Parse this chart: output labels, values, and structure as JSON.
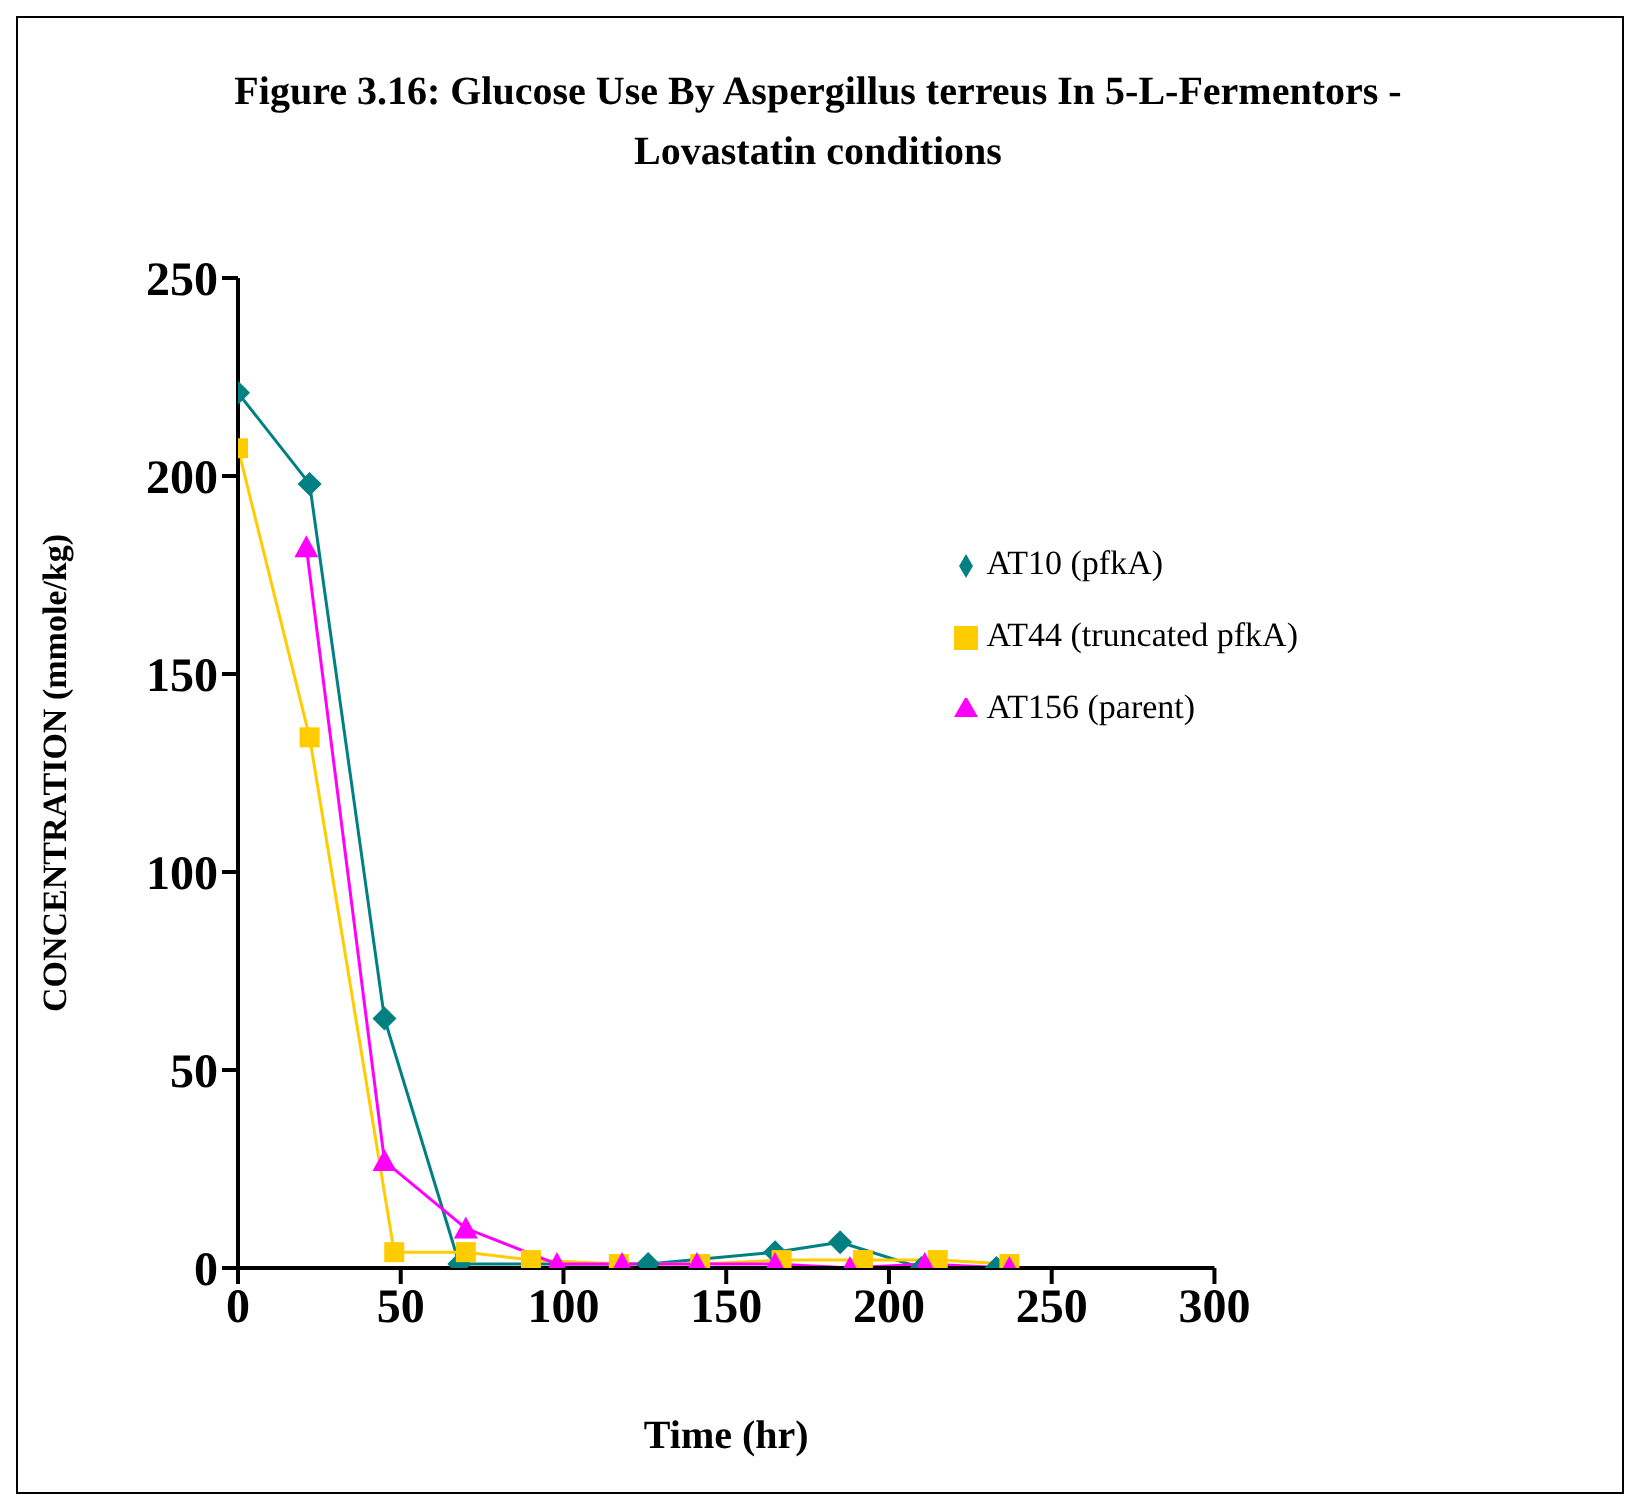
{
  "chart_data": {
    "type": "line",
    "title": "Figure 3.16: Glucose Use By Aspergillus terreus  In 5-L-Fermentors -Lovastatin conditions",
    "xlabel": "Time (hr)",
    "ylabel": "CONCENTRATION (mmole/kg)",
    "series": [
      {
        "name": "AT10 (pfkA)",
        "color": "#008080",
        "marker": "diamond",
        "x": [
          0,
          22,
          45,
          68,
          90,
          126,
          165,
          185,
          210,
          233
        ],
        "values": [
          221,
          198,
          63,
          1,
          null,
          1,
          4,
          6.5,
          0,
          0
        ]
      },
      {
        "name": "AT44 (truncated pfkA)",
        "color": "#ffcc00",
        "marker": "square",
        "x": [
          0,
          22,
          48,
          70,
          90,
          117,
          142,
          167,
          192,
          215,
          237
        ],
        "values": [
          207,
          134,
          4,
          4,
          2,
          1,
          1,
          2,
          2,
          2,
          1
        ]
      },
      {
        "name": "AT156 (parent)",
        "color": "#ff00ff",
        "marker": "triangle",
        "x": [
          21,
          45,
          70,
          98,
          118,
          141,
          165,
          188,
          211,
          237
        ],
        "values": [
          182,
          27,
          10,
          1,
          1,
          1,
          1,
          0,
          1,
          0
        ]
      }
    ],
    "xlim": [
      0,
      300
    ],
    "xticks": [
      0,
      50,
      100,
      150,
      200,
      250,
      300
    ],
    "ylim": [
      0,
      250
    ],
    "yticks": [
      0,
      50,
      100,
      150,
      200,
      250
    ],
    "grid": false,
    "legend": "top right"
  }
}
